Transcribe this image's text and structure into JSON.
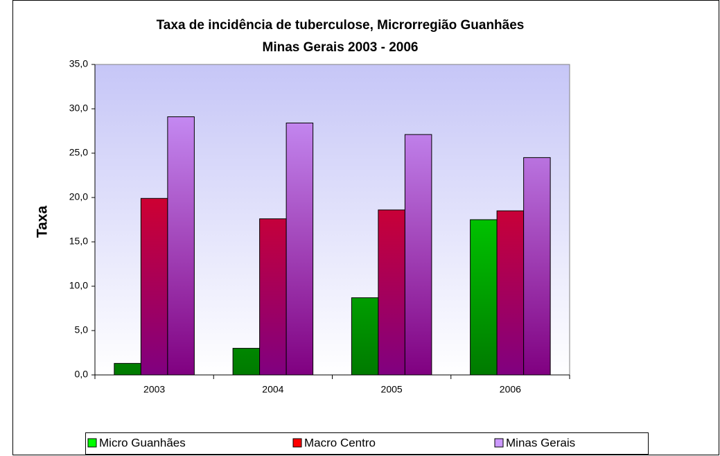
{
  "chart_data": {
    "type": "bar",
    "title": [
      "Taxa de incidência  de tuberculose, Microrregião  Guanhães",
      "Minas Gerais 2003 - 2006"
    ],
    "y_label": "Taxa",
    "categories": [
      "2003",
      "2004",
      "2005",
      "2006"
    ],
    "series": [
      {
        "name": "Micro Guanhães",
        "color": "#00ff00",
        "values": [
          1.3,
          3.0,
          8.7,
          17.5
        ]
      },
      {
        "name": "Macro  Centro",
        "color": "#ff0000",
        "values": [
          19.9,
          17.6,
          18.6,
          18.5
        ]
      },
      {
        "name": "Minas Gerais",
        "color": "#cc99ff",
        "values": [
          29.1,
          28.4,
          27.1,
          24.5
        ]
      }
    ],
    "ylim": [
      0,
      35
    ],
    "yticks": [
      {
        "value": 0,
        "label": "0,0"
      },
      {
        "value": 5,
        "label": "5,0"
      },
      {
        "value": 10,
        "label": "10,0"
      },
      {
        "value": 15,
        "label": "15,0"
      },
      {
        "value": 20,
        "label": "20,0"
      },
      {
        "value": 25,
        "label": "25,0"
      },
      {
        "value": 30,
        "label": "30,0"
      },
      {
        "value": 35,
        "label": "35,0"
      }
    ],
    "legend": "bottom"
  }
}
